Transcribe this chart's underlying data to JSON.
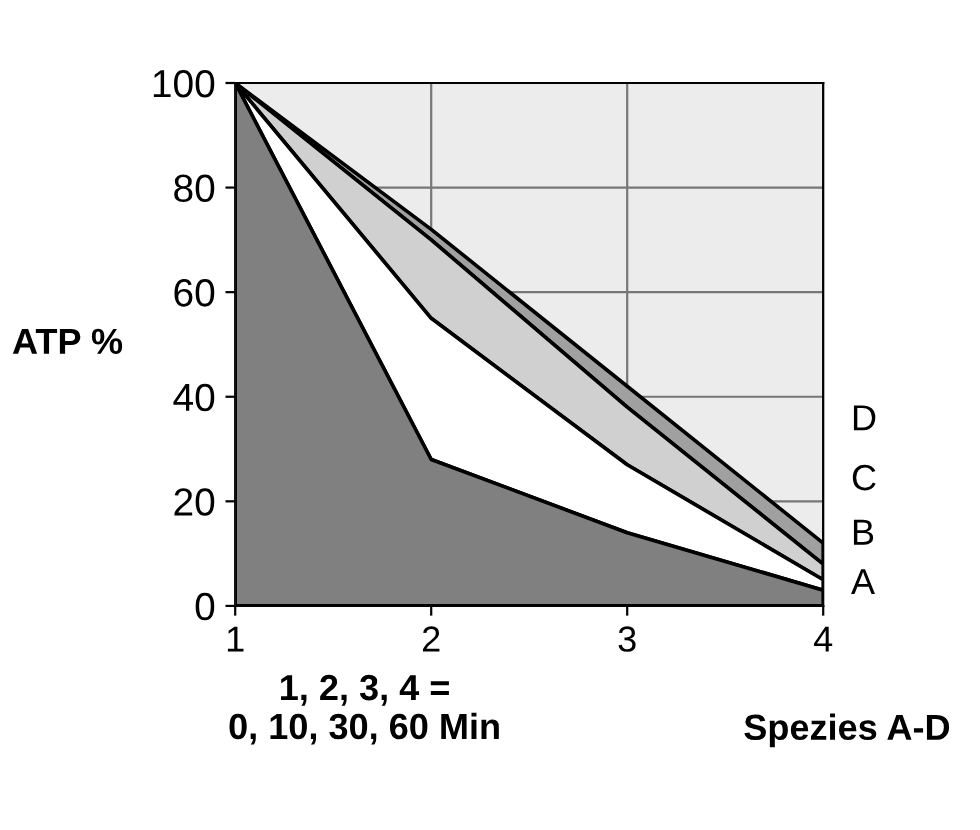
{
  "chart_data": {
    "type": "area",
    "xlabel": "1, 2, 3, 4 =\n0, 10, 30, 60 Min",
    "ylabel": "ATP %",
    "categories": [
      "1",
      "2",
      "3",
      "4"
    ],
    "series": [
      {
        "name": "A",
        "color": "#808080",
        "values": [
          100,
          28,
          14,
          3
        ]
      },
      {
        "name": "B",
        "color": "#ffffff",
        "values": [
          100,
          55,
          27,
          5
        ]
      },
      {
        "name": "C",
        "color": "#d0d0d0",
        "values": [
          100,
          70,
          38,
          8
        ]
      },
      {
        "name": "D",
        "color": "#a0a0a0",
        "values": [
          100,
          72,
          42,
          12
        ]
      }
    ],
    "ylim": [
      0,
      100
    ],
    "yticks": [
      0,
      20,
      40,
      60,
      80,
      100
    ],
    "grid": true,
    "annotations": [
      "Spezies A-D"
    ]
  }
}
